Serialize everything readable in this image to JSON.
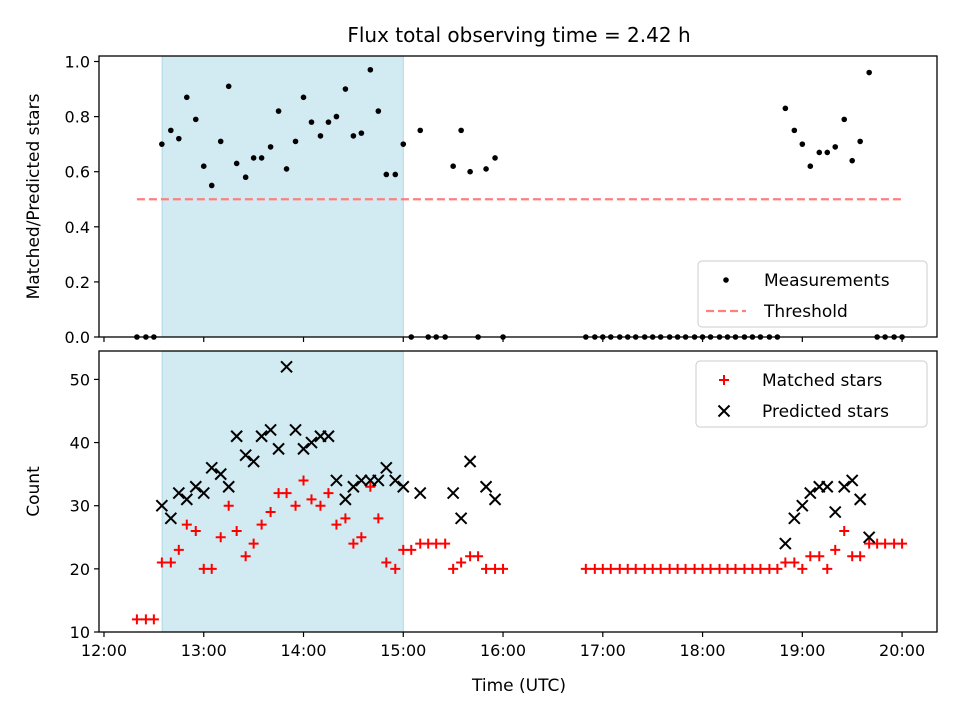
{
  "chart_data": {
    "type": "scatter",
    "title": "Flux total observing time = 2.42 h",
    "xlabel": "Time (UTC)",
    "x_unit": "hours UTC",
    "xlim": [
      11.95,
      20.35
    ],
    "x_ticks": [
      12,
      13,
      14,
      15,
      16,
      17,
      18,
      19,
      20
    ],
    "x_tick_labels": [
      "12:00",
      "13:00",
      "14:00",
      "15:00",
      "16:00",
      "17:00",
      "18:00",
      "19:00",
      "20:00"
    ],
    "shaded_span": {
      "x_start": 12.583,
      "x_end": 15.0,
      "color": "#add8e6"
    },
    "panels": [
      {
        "ylabel": "Matched/Predicted stars",
        "ylim": [
          0,
          1.02
        ],
        "y_ticks": [
          0.0,
          0.2,
          0.4,
          0.6,
          0.8,
          1.0
        ],
        "y_tick_labels": [
          "0.0",
          "0.2",
          "0.4",
          "0.6",
          "0.8",
          "1.0"
        ],
        "legend_position": "bottom-right",
        "series": [
          {
            "name": "Measurements",
            "marker": "dot",
            "color": "#000000",
            "x": [
              12.33,
              12.42,
              12.5,
              12.58,
              12.67,
              12.75,
              12.83,
              12.92,
              13.0,
              13.08,
              13.17,
              13.25,
              13.33,
              13.42,
              13.5,
              13.58,
              13.67,
              13.75,
              13.83,
              13.92,
              14.0,
              14.08,
              14.17,
              14.25,
              14.33,
              14.42,
              14.5,
              14.58,
              14.67,
              14.75,
              14.83,
              14.92,
              15.0,
              15.08,
              15.17,
              15.25,
              15.33,
              15.42,
              15.5,
              15.58,
              15.67,
              15.75,
              15.83,
              15.92,
              16.0,
              16.83,
              16.92,
              17.0,
              17.08,
              17.17,
              17.25,
              17.33,
              17.42,
              17.5,
              17.58,
              17.67,
              17.75,
              17.83,
              17.92,
              18.0,
              18.08,
              18.17,
              18.25,
              18.33,
              18.42,
              18.5,
              18.58,
              18.67,
              18.75,
              18.83,
              18.92,
              19.0,
              19.08,
              19.17,
              19.25,
              19.33,
              19.42,
              19.5,
              19.58,
              19.67,
              19.75,
              19.83,
              19.92,
              20.0
            ],
            "y": [
              0,
              0,
              0,
              0.7,
              0.75,
              0.72,
              0.87,
              0.79,
              0.62,
              0.55,
              0.71,
              0.91,
              0.63,
              0.58,
              0.65,
              0.65,
              0.69,
              0.82,
              0.61,
              0.71,
              0.87,
              0.78,
              0.73,
              0.78,
              0.8,
              0.9,
              0.73,
              0.74,
              0.97,
              0.82,
              0.59,
              0.59,
              0.7,
              0,
              0.75,
              0,
              0,
              0,
              0.62,
              0.75,
              0.6,
              0,
              0.61,
              0.65,
              0,
              0,
              0,
              0,
              0,
              0,
              0,
              0,
              0,
              0,
              0,
              0,
              0,
              0,
              0,
              0,
              0,
              0,
              0,
              0,
              0,
              0,
              0,
              0,
              0,
              0.83,
              0.75,
              0.7,
              0.62,
              0.67,
              0.67,
              0.69,
              0.79,
              0.64,
              0.71,
              0.96,
              0,
              0,
              0,
              0
            ]
          },
          {
            "name": "Threshold",
            "marker": "dashed-line",
            "color": "#ff7f7f",
            "x": [
              12.33,
              20.0
            ],
            "y": [
              0.5,
              0.5
            ]
          }
        ]
      },
      {
        "ylabel": "Count",
        "ylim": [
          10,
          54.5
        ],
        "y_ticks": [
          10,
          20,
          30,
          40,
          50
        ],
        "y_tick_labels": [
          "10",
          "20",
          "30",
          "40",
          "50"
        ],
        "legend_position": "top-right",
        "series": [
          {
            "name": "Matched stars",
            "marker": "plus",
            "color": "#ff0000",
            "x": [
              12.33,
              12.42,
              12.5,
              12.58,
              12.67,
              12.75,
              12.83,
              12.92,
              13.0,
              13.08,
              13.17,
              13.25,
              13.33,
              13.42,
              13.5,
              13.58,
              13.67,
              13.75,
              13.83,
              13.92,
              14.0,
              14.08,
              14.17,
              14.25,
              14.33,
              14.42,
              14.5,
              14.58,
              14.67,
              14.75,
              14.83,
              14.92,
              15.0,
              15.08,
              15.17,
              15.25,
              15.33,
              15.42,
              15.5,
              15.58,
              15.67,
              15.75,
              15.83,
              15.92,
              16.0,
              16.83,
              16.92,
              17.0,
              17.08,
              17.17,
              17.25,
              17.33,
              17.42,
              17.5,
              17.58,
              17.67,
              17.75,
              17.83,
              17.92,
              18.0,
              18.08,
              18.17,
              18.25,
              18.33,
              18.42,
              18.5,
              18.58,
              18.67,
              18.75,
              18.83,
              18.92,
              19.0,
              19.08,
              19.17,
              19.25,
              19.33,
              19.42,
              19.5,
              19.58,
              19.67,
              19.75,
              19.83,
              19.92,
              20.0
            ],
            "y": [
              12,
              12,
              12,
              21,
              21,
              23,
              27,
              26,
              20,
              20,
              25,
              30,
              26,
              22,
              24,
              27,
              29,
              32,
              32,
              30,
              34,
              31,
              30,
              32,
              27,
              28,
              24,
              25,
              33,
              28,
              21,
              20,
              23,
              23,
              24,
              24,
              24,
              24,
              20,
              21,
              22,
              22,
              20,
              20,
              20,
              20,
              20,
              20,
              20,
              20,
              20,
              20,
              20,
              20,
              20,
              20,
              20,
              20,
              20,
              20,
              20,
              20,
              20,
              20,
              20,
              20,
              20,
              20,
              20,
              21,
              21,
              20,
              22,
              22,
              20,
              23,
              26,
              22,
              22,
              24,
              24,
              24,
              24,
              24
            ]
          },
          {
            "name": "Predicted stars",
            "marker": "x",
            "color": "#000000",
            "x": [
              12.58,
              12.67,
              12.75,
              12.83,
              12.92,
              13.0,
              13.08,
              13.17,
              13.25,
              13.33,
              13.42,
              13.5,
              13.58,
              13.67,
              13.75,
              13.83,
              13.92,
              14.0,
              14.08,
              14.17,
              14.25,
              14.33,
              14.42,
              14.5,
              14.58,
              14.67,
              14.75,
              14.83,
              14.92,
              15.0,
              15.17,
              15.5,
              15.58,
              15.67,
              15.83,
              15.92,
              18.83,
              18.92,
              19.0,
              19.08,
              19.17,
              19.25,
              19.33,
              19.42,
              19.5,
              19.58,
              19.67
            ],
            "y": [
              30,
              28,
              32,
              31,
              33,
              32,
              36,
              35,
              33,
              41,
              38,
              37,
              41,
              42,
              39,
              52,
              42,
              39,
              40,
              41,
              41,
              34,
              31,
              33,
              34,
              34,
              34,
              36,
              34,
              33,
              32,
              32,
              28,
              37,
              33,
              31,
              24,
              28,
              30,
              32,
              33,
              33,
              29,
              33,
              34,
              31,
              25
            ]
          }
        ]
      }
    ]
  }
}
